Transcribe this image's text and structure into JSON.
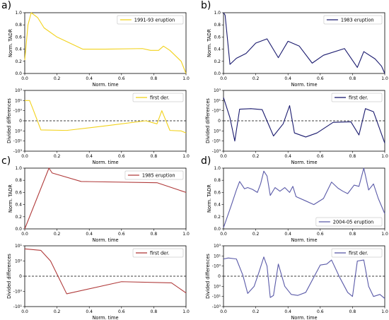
{
  "chart_data": [
    {
      "panel": "a)",
      "type": "line",
      "color": "#f2d21b",
      "legend": "1991-93 eruption",
      "legend_pos": "top-right",
      "xlabel": "Norm. time",
      "ylabel": "Norm. TADR",
      "xlim": [
        0,
        1
      ],
      "ylim": [
        0,
        1
      ],
      "xticks": [
        "0.0",
        "0.2",
        "0.4",
        "0.6",
        "0.8",
        "1.0"
      ],
      "yticks": [
        "0.0",
        "0.2",
        "0.4",
        "0.6",
        "0.8",
        "1.0"
      ],
      "x": [
        0.0,
        0.02,
        0.04,
        0.08,
        0.12,
        0.2,
        0.36,
        0.5,
        0.73,
        0.78,
        0.83,
        0.86,
        0.9,
        0.97,
        1.0
      ],
      "y": [
        0.22,
        0.8,
        1.0,
        0.92,
        0.75,
        0.6,
        0.4,
        0.4,
        0.41,
        0.38,
        0.38,
        0.45,
        0.38,
        0.2,
        0.0
      ]
    },
    {
      "panel": "",
      "type": "line",
      "color": "#f2d21b",
      "legend": "first der.",
      "legend_pos": "top-right",
      "xlabel": "Norm. time",
      "ylabel": "Divided differences",
      "xlim": [
        0,
        1
      ],
      "ylim": [
        -3,
        3
      ],
      "yscale": "symlog",
      "baseline_dashed": true,
      "xticks": [
        "0.0",
        "0.2",
        "0.4",
        "0.6",
        "0.8",
        "1.0"
      ],
      "yticks": [
        "10³",
        "10¹",
        "-10⁰",
        "0",
        "10⁰",
        "-10¹",
        "-10³"
      ],
      "x": [
        0.0,
        0.03,
        0.05,
        0.1,
        0.26,
        0.5,
        0.75,
        0.82,
        0.85,
        0.9,
        0.97,
        1.0
      ],
      "y": [
        2.0,
        2.0,
        1.2,
        -0.9,
        -0.95,
        -0.5,
        0.0,
        -0.3,
        1.0,
        -0.95,
        -1.0,
        -1.2
      ]
    },
    {
      "panel": "b)",
      "type": "line",
      "color": "#1a1a6e",
      "legend": "1983 eruption",
      "legend_pos": "top-right",
      "xlabel": "Norm. time",
      "ylabel": "Norm. TADR",
      "xlim": [
        0,
        1
      ],
      "ylim": [
        0,
        1
      ],
      "xticks": [
        "0.0",
        "0.2",
        "0.4",
        "0.6",
        "0.8",
        "1.0"
      ],
      "yticks": [
        "0.0",
        "0.2",
        "0.4",
        "0.6",
        "0.8",
        "1.0"
      ],
      "x": [
        0.0,
        0.01,
        0.04,
        0.08,
        0.14,
        0.2,
        0.27,
        0.34,
        0.4,
        0.47,
        0.55,
        0.62,
        0.75,
        0.83,
        0.87,
        0.94,
        0.98,
        1.0
      ],
      "y": [
        1.0,
        0.96,
        0.15,
        0.25,
        0.33,
        0.5,
        0.57,
        0.26,
        0.53,
        0.45,
        0.17,
        0.3,
        0.41,
        0.1,
        0.36,
        0.24,
        0.12,
        0.0
      ]
    },
    {
      "panel": "",
      "type": "line",
      "color": "#1a1a6e",
      "legend": "first der.",
      "legend_pos": "top-right",
      "xlabel": "Norm. time",
      "ylabel": "Divided differences",
      "xlim": [
        0,
        1
      ],
      "ylim": [
        -3,
        3
      ],
      "yscale": "symlog",
      "baseline_dashed": true,
      "xticks": [
        "0.0",
        "0.2",
        "0.4",
        "0.6",
        "0.8",
        "1.0"
      ],
      "yticks": [
        "10³",
        "10¹",
        "-10⁰",
        "0",
        "10⁰",
        "-10¹",
        "-10³"
      ],
      "x": [
        0.0,
        0.04,
        0.07,
        0.1,
        0.17,
        0.24,
        0.31,
        0.37,
        0.41,
        0.44,
        0.51,
        0.58,
        0.68,
        0.79,
        0.84,
        0.88,
        0.93,
        1.0
      ],
      "y": [
        2.3,
        0.3,
        -2.0,
        1.15,
        1.2,
        1.1,
        -1.5,
        -0.3,
        1.5,
        -1.2,
        -1.6,
        -1.2,
        -0.15,
        -0.1,
        -1.4,
        1.2,
        0.9,
        -2.2
      ]
    },
    {
      "panel": "c)",
      "type": "line",
      "color": "#b03a3a",
      "legend": "1985 eruption",
      "legend_pos": "top-right",
      "xlabel": "Norm. time",
      "ylabel": "Norm. TADR",
      "xlim": [
        0,
        1
      ],
      "ylim": [
        0,
        1
      ],
      "xticks": [
        "0.0",
        "0.2",
        "0.4",
        "0.6",
        "0.8",
        "1.0"
      ],
      "yticks": [
        "0.0",
        "0.2",
        "0.4",
        "0.6",
        "0.8",
        "1.0"
      ],
      "x": [
        0.0,
        0.15,
        0.17,
        0.35,
        0.82,
        1.0
      ],
      "y": [
        0.0,
        1.0,
        0.92,
        0.78,
        0.76,
        0.6
      ]
    },
    {
      "panel": "",
      "type": "line",
      "color": "#b03a3a",
      "legend": "first der.",
      "legend_pos": "top-right",
      "xlabel": "Norm. time",
      "ylabel": "Divided differences",
      "xlim": [
        0,
        1
      ],
      "ylim": [
        -1,
        1
      ],
      "yscale": "symlog",
      "baseline_dashed": true,
      "xticks": [
        "0.0",
        "0.2",
        "0.4",
        "0.6",
        "0.8",
        "1.0"
      ],
      "yticks": [
        "10¹",
        "10⁰",
        "0",
        "-10⁰",
        "-10¹"
      ],
      "x": [
        0.0,
        0.1,
        0.16,
        0.26,
        0.6,
        0.91,
        1.0
      ],
      "y": [
        0.9,
        0.85,
        0.5,
        -0.58,
        -0.18,
        -0.22,
        -0.55
      ]
    },
    {
      "panel": "d)",
      "type": "line",
      "color": "#5a5aa8",
      "legend": "2004-05 eruption",
      "legend_pos": "bottom-right",
      "xlabel": "Norm. time",
      "ylabel": "Norm. TADR",
      "xlim": [
        0,
        1
      ],
      "ylim": [
        0,
        1
      ],
      "xticks": [
        "0.0",
        "0.2",
        "0.4",
        "0.6",
        "0.8",
        "1.0"
      ],
      "yticks": [
        "0.0",
        "0.2",
        "0.4",
        "0.6",
        "0.8",
        "1.0"
      ],
      "x": [
        0.0,
        0.05,
        0.08,
        0.1,
        0.13,
        0.15,
        0.18,
        0.21,
        0.23,
        0.25,
        0.27,
        0.29,
        0.32,
        0.35,
        0.38,
        0.41,
        0.43,
        0.45,
        0.51,
        0.56,
        0.62,
        0.67,
        0.71,
        0.74,
        0.77,
        0.81,
        0.84,
        0.87,
        0.9,
        0.93,
        0.96,
        1.0
      ],
      "y": [
        0.02,
        0.4,
        0.64,
        0.78,
        0.66,
        0.68,
        0.65,
        0.6,
        0.74,
        0.95,
        0.87,
        0.55,
        0.68,
        0.62,
        0.68,
        0.6,
        0.7,
        0.53,
        0.46,
        0.4,
        0.5,
        0.77,
        0.67,
        0.62,
        0.58,
        0.72,
        0.7,
        1.0,
        0.64,
        0.74,
        0.5,
        0.25
      ]
    },
    {
      "panel": "",
      "type": "line",
      "color": "#5a5aa8",
      "legend": "first der.",
      "legend_pos": "top-right",
      "xlabel": "Norm. time",
      "ylabel": "Divided differences",
      "xlim": [
        0,
        1
      ],
      "ylim": [
        -3,
        3
      ],
      "yscale": "symlog",
      "baseline_dashed": true,
      "xticks": [
        "0.0",
        "0.2",
        "0.4",
        "0.6",
        "0.8",
        "1.0"
      ],
      "yticks": [
        "10³",
        "10¹",
        "-10⁰",
        "0",
        "10⁰",
        "-10¹",
        "-10³"
      ],
      "x": [
        0.0,
        0.03,
        0.08,
        0.12,
        0.15,
        0.19,
        0.22,
        0.25,
        0.27,
        0.29,
        0.31,
        0.34,
        0.38,
        0.42,
        0.46,
        0.51,
        0.6,
        0.64,
        0.67,
        0.72,
        0.77,
        0.8,
        0.83,
        0.87,
        0.9,
        0.93,
        0.97,
        1.0
      ],
      "y": [
        1.7,
        1.8,
        1.7,
        0.1,
        -1.7,
        -1.0,
        0.4,
        1.9,
        1.0,
        -2.1,
        -1.9,
        1.2,
        -1.0,
        -1.8,
        -1.9,
        -1.6,
        1.1,
        1.2,
        1.6,
        -0.1,
        -1.6,
        -2.0,
        1.5,
        1.6,
        -1.0,
        -2.0,
        -1.8,
        -2.2
      ]
    }
  ]
}
